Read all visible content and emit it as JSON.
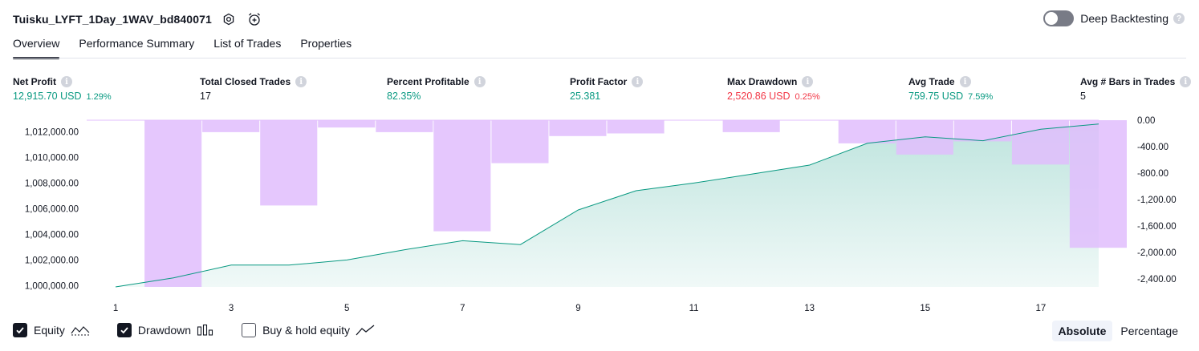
{
  "header": {
    "title": "Tuisku_LYFT_1Day_1WAV_bd840071",
    "settings_icon": "gear-icon",
    "alert_icon": "alarm-clock-add-icon"
  },
  "deep_backtesting": {
    "label": "Deep Backtesting",
    "enabled": false
  },
  "tabs": [
    {
      "label": "Overview",
      "active": true
    },
    {
      "label": "Performance Summary",
      "active": false
    },
    {
      "label": "List of Trades",
      "active": false
    },
    {
      "label": "Properties",
      "active": false
    }
  ],
  "metrics": [
    {
      "label": "Net Profit",
      "value": "12,915.70 USD",
      "pct": "1.29%",
      "color": "#089981"
    },
    {
      "label": "Total Closed Trades",
      "value": "17",
      "pct": "",
      "color": "#131722"
    },
    {
      "label": "Percent Profitable",
      "value": "82.35%",
      "pct": "",
      "color": "#089981"
    },
    {
      "label": "Profit Factor",
      "value": "25.381",
      "pct": "",
      "color": "#089981"
    },
    {
      "label": "Max Drawdown",
      "value": "2,520.86 USD",
      "pct": "0.25%",
      "color": "#f23645"
    },
    {
      "label": "Avg Trade",
      "value": "759.75 USD",
      "pct": "7.59%",
      "color": "#089981"
    },
    {
      "label": "Avg # Bars in Trades",
      "value": "5",
      "pct": "",
      "color": "#131722"
    }
  ],
  "chart_data": {
    "type": "line",
    "x_ticks": [
      "1",
      "3",
      "5",
      "7",
      "9",
      "11",
      "13",
      "15",
      "17"
    ],
    "left_axis": {
      "ticks": [
        "1,000,000.00",
        "1,002,000.00",
        "1,004,000.00",
        "1,006,000.00",
        "1,008,000.00",
        "1,010,000.00",
        "1,012,000.00"
      ],
      "range": [
        999900,
        1012900
      ]
    },
    "right_axis": {
      "ticks": [
        "0.00",
        "-400.00",
        "-800.00",
        "-1,200.00",
        "-1,600.00",
        "-2,000.00",
        "-2,400.00"
      ],
      "range": [
        -2520.86,
        0
      ]
    },
    "series": [
      {
        "name": "Equity",
        "color": "#089981",
        "x": [
          1,
          2,
          3,
          4,
          5,
          6,
          7,
          8,
          9,
          10,
          11,
          12,
          13,
          14,
          15,
          16,
          17,
          18
        ],
        "values": [
          999900,
          1000600,
          1001600,
          1001600,
          1002000,
          1002800,
          1003500,
          1003200,
          1005900,
          1007400,
          1008000,
          1008700,
          1009400,
          1011100,
          1011600,
          1011300,
          1012200,
          1012600
        ]
      },
      {
        "name": "Drawdown",
        "color": "#e1bdfd",
        "x": [
          2,
          3,
          4,
          5,
          6,
          7,
          8,
          9,
          10,
          11,
          12,
          13,
          14,
          15,
          16,
          17,
          18
        ],
        "values": [
          -2520.86,
          -180,
          -1290,
          -110,
          -180,
          -1680,
          -650,
          -240,
          -200,
          0,
          -180,
          0,
          -350,
          -520,
          -320,
          -670,
          -1930
        ]
      }
    ]
  },
  "legend": [
    {
      "label": "Equity",
      "checked": true
    },
    {
      "label": "Drawdown",
      "checked": true
    },
    {
      "label": "Buy & hold equity",
      "checked": false
    }
  ],
  "modes": [
    {
      "label": "Absolute",
      "active": true
    },
    {
      "label": "Percentage",
      "active": false
    }
  ]
}
